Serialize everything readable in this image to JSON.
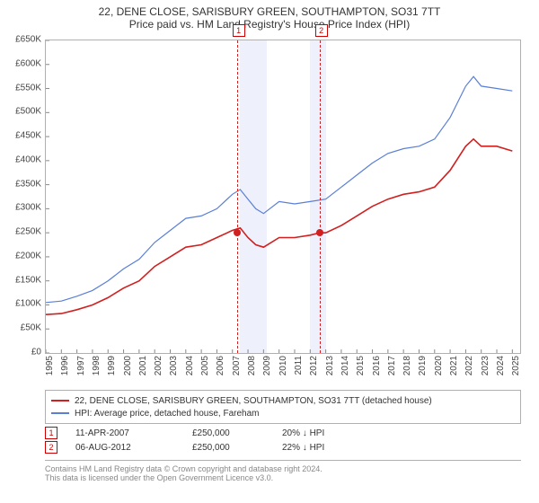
{
  "title_line1": "22, DENE CLOSE, SARISBURY GREEN, SOUTHAMPTON, SO31 7TT",
  "title_line2": "Price paid vs. HM Land Registry's House Price Index (HPI)",
  "chart": {
    "type": "line",
    "background_color": "#ffffff",
    "border_color": "#b0b0b0",
    "shade_color": "#eef1fb",
    "x": {
      "min": 1995,
      "max": 2025.5,
      "ticks": [
        1995,
        1996,
        1997,
        1998,
        1999,
        2000,
        2001,
        2002,
        2003,
        2004,
        2005,
        2006,
        2007,
        2008,
        2009,
        2010,
        2011,
        2012,
        2013,
        2014,
        2015,
        2016,
        2017,
        2018,
        2019,
        2020,
        2021,
        2022,
        2023,
        2024,
        2025
      ]
    },
    "y": {
      "min": 0,
      "max": 650000,
      "ticks": [
        0,
        50000,
        100000,
        150000,
        200000,
        250000,
        300000,
        350000,
        400000,
        450000,
        500000,
        550000,
        600000,
        650000
      ],
      "tick_labels": [
        "£0",
        "£50K",
        "£100K",
        "£150K",
        "£200K",
        "£250K",
        "£300K",
        "£350K",
        "£400K",
        "£450K",
        "£500K",
        "£550K",
        "£600K",
        "£650K"
      ]
    },
    "shaded_ranges": [
      [
        2007.5,
        2009.2
      ],
      [
        2012.0,
        2013.0
      ]
    ],
    "vlines": [
      {
        "x": 2007.28,
        "label": "1"
      },
      {
        "x": 2012.6,
        "label": "2"
      }
    ],
    "markers": [
      {
        "x": 2007.28,
        "y": 250000
      },
      {
        "x": 2012.6,
        "y": 250000
      }
    ],
    "series": [
      {
        "name": "property",
        "color": "#d02020",
        "width": 1.6,
        "label": "22, DENE CLOSE, SARISBURY GREEN, SOUTHAMPTON, SO31 7TT (detached house)",
        "points": [
          [
            1995,
            80000
          ],
          [
            1996,
            82000
          ],
          [
            1997,
            90000
          ],
          [
            1998,
            100000
          ],
          [
            1999,
            115000
          ],
          [
            2000,
            135000
          ],
          [
            2001,
            150000
          ],
          [
            2002,
            180000
          ],
          [
            2003,
            200000
          ],
          [
            2004,
            220000
          ],
          [
            2005,
            225000
          ],
          [
            2006,
            240000
          ],
          [
            2007,
            255000
          ],
          [
            2007.5,
            260000
          ],
          [
            2008,
            240000
          ],
          [
            2008.5,
            225000
          ],
          [
            2009,
            220000
          ],
          [
            2010,
            240000
          ],
          [
            2011,
            240000
          ],
          [
            2012,
            245000
          ],
          [
            2012.6,
            250000
          ],
          [
            2013,
            250000
          ],
          [
            2014,
            265000
          ],
          [
            2015,
            285000
          ],
          [
            2016,
            305000
          ],
          [
            2017,
            320000
          ],
          [
            2018,
            330000
          ],
          [
            2019,
            335000
          ],
          [
            2020,
            345000
          ],
          [
            2021,
            380000
          ],
          [
            2022,
            430000
          ],
          [
            2022.5,
            445000
          ],
          [
            2023,
            430000
          ],
          [
            2024,
            430000
          ],
          [
            2025,
            420000
          ]
        ]
      },
      {
        "name": "hpi",
        "color": "#5a7fd6",
        "width": 1.2,
        "label": "HPI: Average price, detached house, Fareham",
        "points": [
          [
            1995,
            105000
          ],
          [
            1996,
            108000
          ],
          [
            1997,
            118000
          ],
          [
            1998,
            130000
          ],
          [
            1999,
            150000
          ],
          [
            2000,
            175000
          ],
          [
            2001,
            195000
          ],
          [
            2002,
            230000
          ],
          [
            2003,
            255000
          ],
          [
            2004,
            280000
          ],
          [
            2005,
            285000
          ],
          [
            2006,
            300000
          ],
          [
            2007,
            330000
          ],
          [
            2007.5,
            340000
          ],
          [
            2008,
            320000
          ],
          [
            2008.5,
            300000
          ],
          [
            2009,
            290000
          ],
          [
            2010,
            315000
          ],
          [
            2011,
            310000
          ],
          [
            2012,
            315000
          ],
          [
            2013,
            320000
          ],
          [
            2014,
            345000
          ],
          [
            2015,
            370000
          ],
          [
            2016,
            395000
          ],
          [
            2017,
            415000
          ],
          [
            2018,
            425000
          ],
          [
            2019,
            430000
          ],
          [
            2020,
            445000
          ],
          [
            2021,
            490000
          ],
          [
            2022,
            555000
          ],
          [
            2022.5,
            575000
          ],
          [
            2023,
            555000
          ],
          [
            2024,
            550000
          ],
          [
            2025,
            545000
          ]
        ]
      }
    ]
  },
  "legend": {
    "items": [
      {
        "color": "#d02020",
        "label": "22, DENE CLOSE, SARISBURY GREEN, SOUTHAMPTON, SO31 7TT (detached house)"
      },
      {
        "color": "#5a7fd6",
        "label": "HPI: Average price, detached house, Fareham"
      }
    ]
  },
  "transactions": [
    {
      "badge": "1",
      "date": "11-APR-2007",
      "price": "£250,000",
      "note": "20% ↓ HPI"
    },
    {
      "badge": "2",
      "date": "06-AUG-2012",
      "price": "£250,000",
      "note": "22% ↓ HPI"
    }
  ],
  "footer_line1": "Contains HM Land Registry data © Crown copyright and database right 2024.",
  "footer_line2": "This data is licensed under the Open Government Licence v3.0."
}
